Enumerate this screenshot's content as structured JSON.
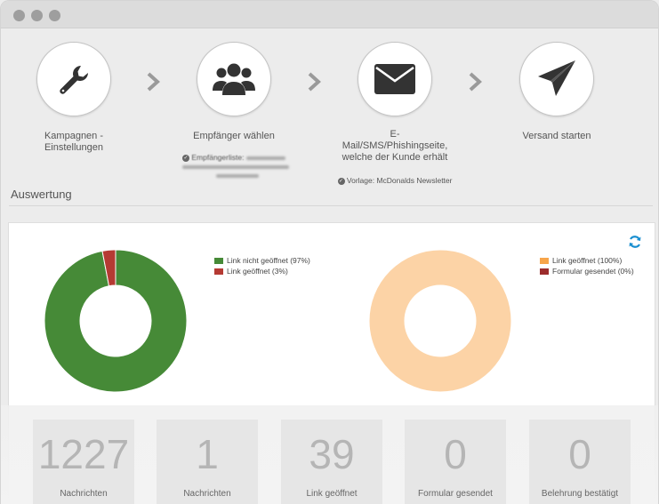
{
  "window": {
    "controls": [
      "close",
      "minimize",
      "maximize"
    ]
  },
  "steps": [
    {
      "label": "Kampagnen -\nEinstellungen",
      "icon": "wrench-icon"
    },
    {
      "label": "Empfänger wählen",
      "icon": "users-icon",
      "note": "Empfängerliste:"
    },
    {
      "label": "E-\nMail/SMS/Phishingseite,\nwelche der Kunde erhält",
      "icon": "envelope-icon",
      "note": "Vorlage: McDonalds Newsletter"
    },
    {
      "label": "Versand starten",
      "icon": "paper-plane-icon"
    }
  ],
  "section": {
    "title": "Auswertung"
  },
  "charts": {
    "refresh_icon": "refresh-icon",
    "colors": {
      "green": "#468a37",
      "red": "#b53a33",
      "orange": "#f7a54a",
      "peach": "#fcd3a6",
      "darkred": "#9c2c2c"
    }
  },
  "chart_data": [
    {
      "type": "pie",
      "series": [
        {
          "name": "Link nicht geöffnet (97%)",
          "value": 97,
          "color": "#468a37"
        },
        {
          "name": "Link geöffnet (3%)",
          "value": 3,
          "color": "#b53a33"
        }
      ]
    },
    {
      "type": "pie",
      "series": [
        {
          "name": "Link geöffnet (100%)",
          "value": 100,
          "color": "#f7a54a"
        },
        {
          "name": "Formular gesendet (0%)",
          "value": 0,
          "color": "#9c2c2c"
        }
      ]
    }
  ],
  "stats": [
    {
      "value": "1227",
      "label": "Nachrichten"
    },
    {
      "value": "1",
      "label": "Nachrichten"
    },
    {
      "value": "39",
      "label": "Link geöffnet"
    },
    {
      "value": "0",
      "label": "Formular gesendet"
    },
    {
      "value": "0",
      "label": "Belehrung bestätigt"
    }
  ]
}
